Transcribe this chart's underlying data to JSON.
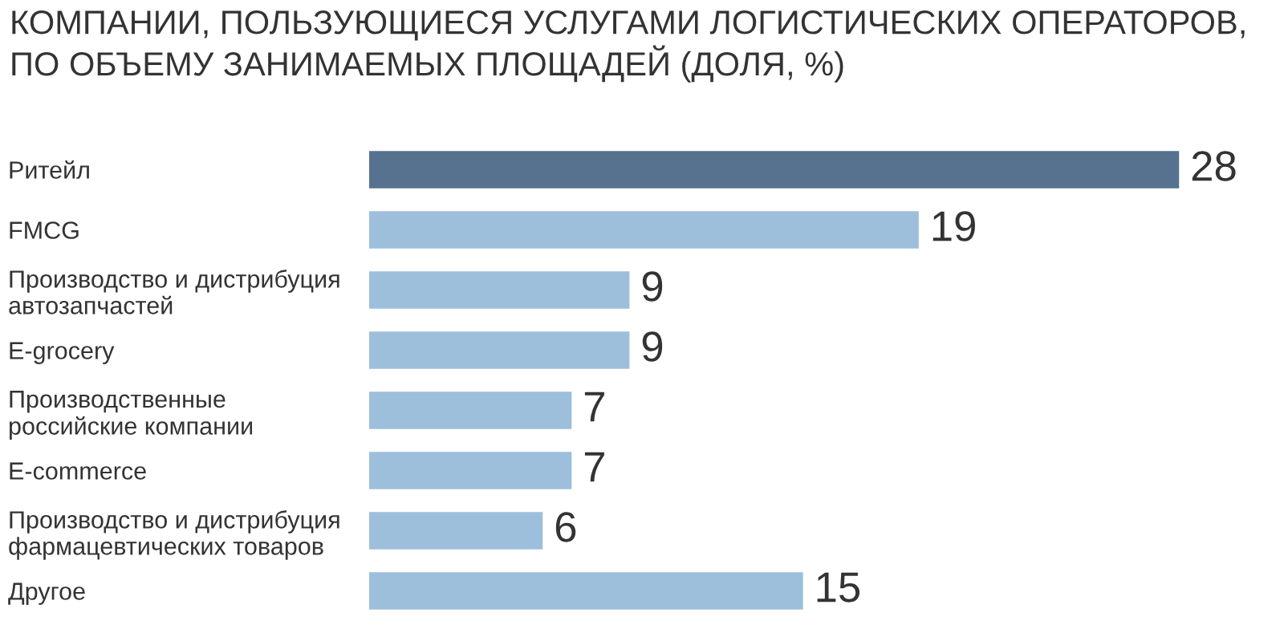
{
  "chart_data": {
    "type": "bar",
    "orientation": "horizontal",
    "title": "КОМПАНИИ, ПОЛЬЗУЮЩИЕСЯ УСЛУГАМИ ЛОГИСТИЧЕСКИХ ОПЕРАТОРОВ,\nПО ОБЪЕМУ ЗАНИМАЕМЫХ ПЛОЩАДЕЙ (ДОЛЯ, %)",
    "categories": [
      "Ритейл",
      "FMCG",
      "Производство и дистрибуция\nавтозапчастей",
      "E-grocery",
      "Производственные\nроссийские компании",
      "E-commerce",
      "Производство и дистрибуция\nфармацевтических товаров",
      "Другое"
    ],
    "values": [
      28,
      19,
      9,
      9,
      7,
      7,
      6,
      15
    ],
    "colors": [
      "#56728e",
      "#9dbfdc",
      "#9dbfdc",
      "#9dbfdc",
      "#9dbfdc",
      "#9dbfdc",
      "#9dbfdc",
      "#9dbfdc"
    ],
    "data_labels": true,
    "grid": false,
    "legend": false
  }
}
